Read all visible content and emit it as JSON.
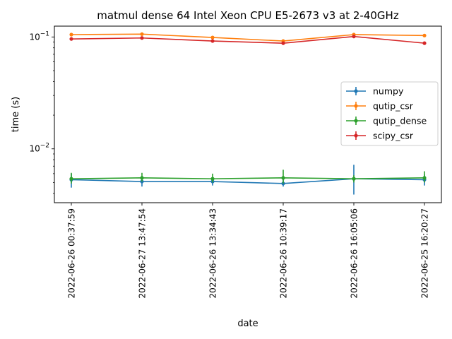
{
  "chart_data": {
    "type": "line",
    "title": "matmul dense 64 Intel Xeon CPU E5-2673 v3 at 2-40GHz",
    "xlabel": "date",
    "ylabel": "time (s)",
    "yscale": "log",
    "ylim": [
      0.0033,
      0.125
    ],
    "y_ticks": [
      {
        "value": 0.01,
        "base": "10",
        "exp": "−2"
      },
      {
        "value": 0.1,
        "base": "10",
        "exp": "−1"
      }
    ],
    "categories": [
      "2022-06-26 00:37:59",
      "2022-06-27 13:47:54",
      "2022-06-26 13:34:43",
      "2022-06-26 10:39:17",
      "2022-06-26 16:05:06",
      "2022-06-25 16:20:27"
    ],
    "grid": false,
    "legend_position": "center-right",
    "series": [
      {
        "name": "numpy",
        "color": "#1f77b4",
        "values": [
          0.0053,
          0.0051,
          0.0051,
          0.0049,
          0.0054,
          0.0053
        ],
        "err_low": [
          0.0045,
          0.0046,
          0.0047,
          0.0046,
          0.0039,
          0.0047
        ],
        "err_high": [
          0.006,
          0.0057,
          0.0056,
          0.0053,
          0.0072,
          0.0059
        ]
      },
      {
        "name": "qutip_csr",
        "color": "#ff7f0e",
        "values": [
          0.105,
          0.106,
          0.099,
          0.092,
          0.105,
          0.103
        ],
        "err_low": [
          0.104,
          0.105,
          0.098,
          0.091,
          0.104,
          0.102
        ],
        "err_high": [
          0.106,
          0.107,
          0.1,
          0.093,
          0.106,
          0.104
        ]
      },
      {
        "name": "qutip_dense",
        "color": "#2ca02c",
        "values": [
          0.0054,
          0.0055,
          0.0054,
          0.0055,
          0.0054,
          0.0055
        ],
        "err_low": [
          0.0049,
          0.0051,
          0.005,
          0.0049,
          0.005,
          0.005
        ],
        "err_high": [
          0.0061,
          0.0061,
          0.006,
          0.0065,
          0.0058,
          0.0063
        ]
      },
      {
        "name": "scipy_csr",
        "color": "#d62728",
        "values": [
          0.096,
          0.098,
          0.092,
          0.088,
          0.101,
          0.088
        ],
        "err_low": [
          0.095,
          0.097,
          0.091,
          0.087,
          0.1,
          0.087
        ],
        "err_high": [
          0.097,
          0.099,
          0.093,
          0.089,
          0.102,
          0.089
        ]
      }
    ]
  }
}
